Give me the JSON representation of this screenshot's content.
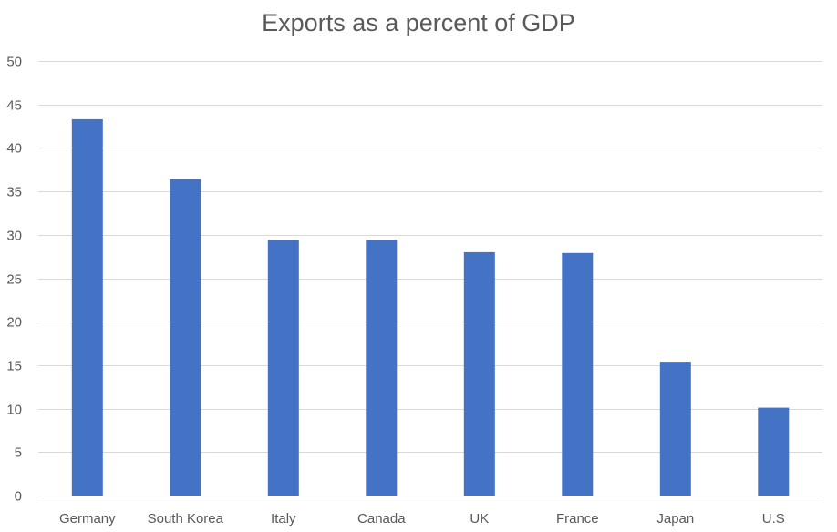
{
  "chart_data": {
    "type": "bar",
    "title": "Exports as a percent of GDP",
    "xlabel": "",
    "ylabel": "",
    "categories": [
      "Germany",
      "South Korea",
      "Italy",
      "Canada",
      "UK",
      "France",
      "Japan",
      "U.S"
    ],
    "values": [
      43.3,
      36.4,
      29.4,
      29.4,
      28.0,
      27.9,
      15.4,
      10.1
    ],
    "ylim": [
      0,
      50
    ],
    "yticks": [
      0,
      5,
      10,
      15,
      20,
      25,
      30,
      35,
      40,
      45,
      50
    ],
    "grid": true,
    "legend": "none",
    "bar_color": "#4472c4"
  }
}
